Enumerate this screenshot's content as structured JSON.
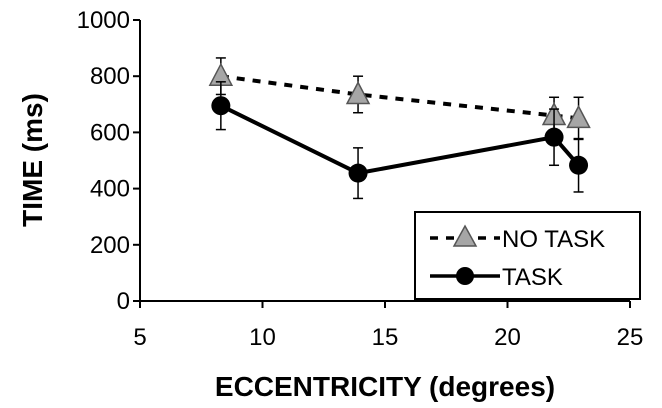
{
  "chart_data": {
    "type": "line",
    "xlabel": "ECCENTRICITY (degrees)",
    "ylabel": "TIME (ms)",
    "xlim": [
      5,
      25
    ],
    "ylim": [
      0,
      1000
    ],
    "x_ticks": [
      5,
      10,
      15,
      20,
      25
    ],
    "y_ticks": [
      0,
      200,
      400,
      600,
      800,
      1000
    ],
    "grid": false,
    "legend_position": "bottom-right",
    "series": [
      {
        "name": "NO TASK",
        "marker": "triangle",
        "line_style": "dashed",
        "color": "#a6a6a6",
        "x": [
          8.3,
          13.9,
          21.9,
          22.9
        ],
        "y": [
          800,
          735,
          660,
          650
        ],
        "err": [
          65,
          65,
          65,
          75
        ]
      },
      {
        "name": "TASK",
        "marker": "circle",
        "line_style": "solid",
        "color": "#000000",
        "x": [
          8.3,
          13.9,
          21.9,
          22.9
        ],
        "y": [
          695,
          455,
          583,
          483
        ],
        "err": [
          85,
          90,
          100,
          95
        ]
      }
    ]
  }
}
